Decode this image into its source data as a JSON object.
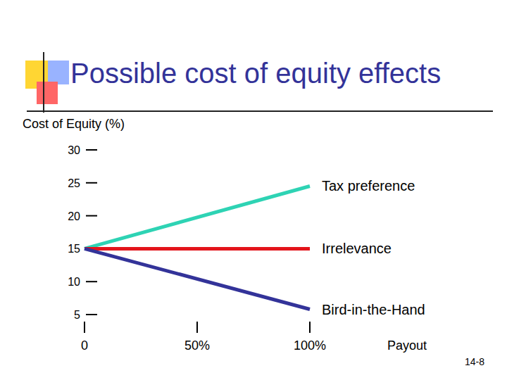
{
  "chart_data": {
    "type": "line",
    "title": "Possible cost of equity effects",
    "y_label": "Cost of Equity (%)",
    "x_label": "Payout",
    "annotation": "14-8",
    "x": [
      0,
      100
    ],
    "xlim": [
      0,
      100
    ],
    "xticks": [
      0,
      {
        "value": 50,
        "label": "50%"
      },
      {
        "value": 100,
        "label": "100%"
      }
    ],
    "ylim": [
      5,
      30
    ],
    "yticks": [
      5,
      10,
      15,
      20,
      25,
      30
    ],
    "grid": false,
    "marker": "none",
    "line_style": "solid",
    "series": [
      {
        "name": "Tax preference",
        "color": "#2ed3b4",
        "values": [
          15,
          24.5
        ]
      },
      {
        "name": "Irrelevance",
        "color": "#e3141b",
        "values": [
          15,
          15
        ]
      },
      {
        "name": "Bird-in-the-Hand",
        "color": "#333399",
        "values": [
          15,
          5.8
        ]
      }
    ]
  }
}
